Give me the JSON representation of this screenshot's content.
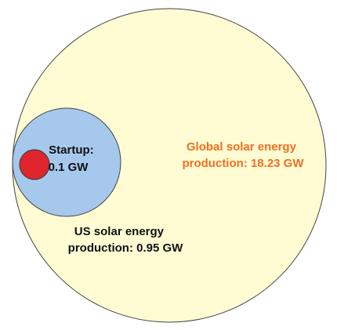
{
  "diagram": {
    "global": {
      "line1": "Global solar energy",
      "line2": "production: 18.23 GW",
      "value_gw": 18.23,
      "fill": "#FFFCD3",
      "text_color": "#F26E21"
    },
    "us": {
      "line1": "US solar energy",
      "line2": "production: 0.95 GW",
      "value_gw": 0.95,
      "fill": "#A6C8EC",
      "text_color": "#111111"
    },
    "startup": {
      "line1": "Startup:",
      "line2": "0.1 GW",
      "value_gw": 0.1,
      "fill": "#E0242B",
      "text_color": "#111111"
    },
    "stroke_color": "#444444"
  }
}
